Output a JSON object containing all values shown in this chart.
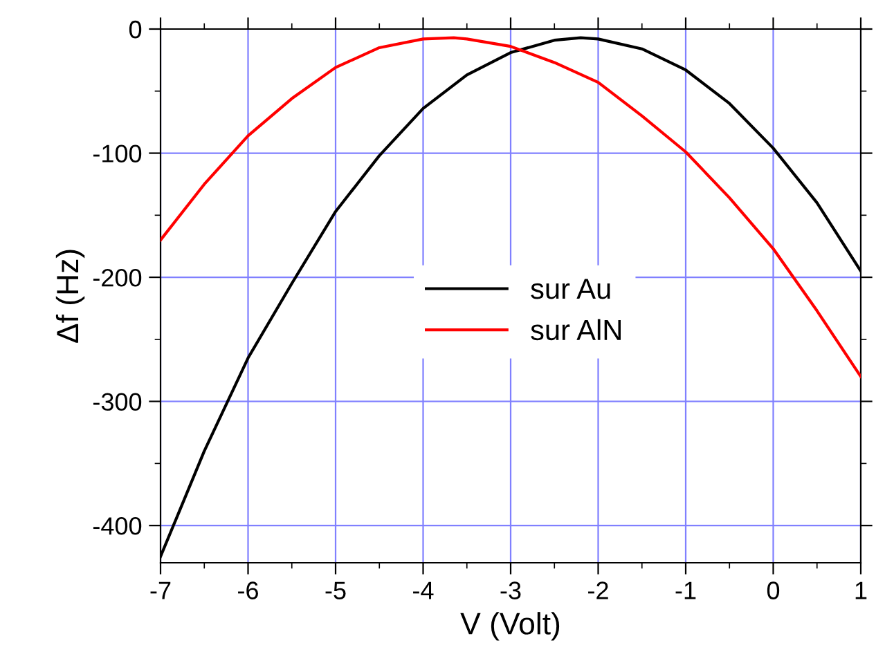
{
  "chart_data": {
    "type": "line",
    "xlabel": "V (Volt)",
    "ylabel": "Δf (Hz)",
    "xlim": [
      -7,
      1
    ],
    "xticks": [
      -7,
      -6,
      -5,
      -4,
      -3,
      -2,
      -1,
      0,
      1
    ],
    "ylim": [
      -430,
      0
    ],
    "yticks": [
      -400,
      -300,
      -200,
      -100,
      0
    ],
    "grid": true,
    "legend": "center",
    "marker": "none",
    "line_style": "solid",
    "series": [
      {
        "name": "sur Au",
        "color": "#000000",
        "x": [
          -7,
          -6.5,
          -6,
          -5.5,
          -5,
          -4.5,
          -4,
          -3.5,
          -3,
          -2.5,
          -2.2,
          -2,
          -1.5,
          -1,
          -0.5,
          0,
          0.5,
          1
        ],
        "values": [
          -425,
          -340,
          -265,
          -205,
          -147,
          -102,
          -64,
          -37,
          -19,
          -9,
          -7,
          -8,
          -16,
          -33,
          -60,
          -96,
          -140,
          -195
        ]
      },
      {
        "name": "sur AlN",
        "color": "#ff0000",
        "x": [
          -7,
          -6.5,
          -6,
          -5.5,
          -5,
          -4.5,
          -4,
          -3.65,
          -3.5,
          -3,
          -2.5,
          -2,
          -1.5,
          -1,
          -0.5,
          0,
          0.5,
          1
        ],
        "values": [
          -170,
          -125,
          -86,
          -56,
          -31,
          -15,
          -8,
          -7,
          -8,
          -14,
          -27,
          -43,
          -70,
          -99,
          -136,
          -177,
          -227,
          -280
        ]
      }
    ]
  }
}
